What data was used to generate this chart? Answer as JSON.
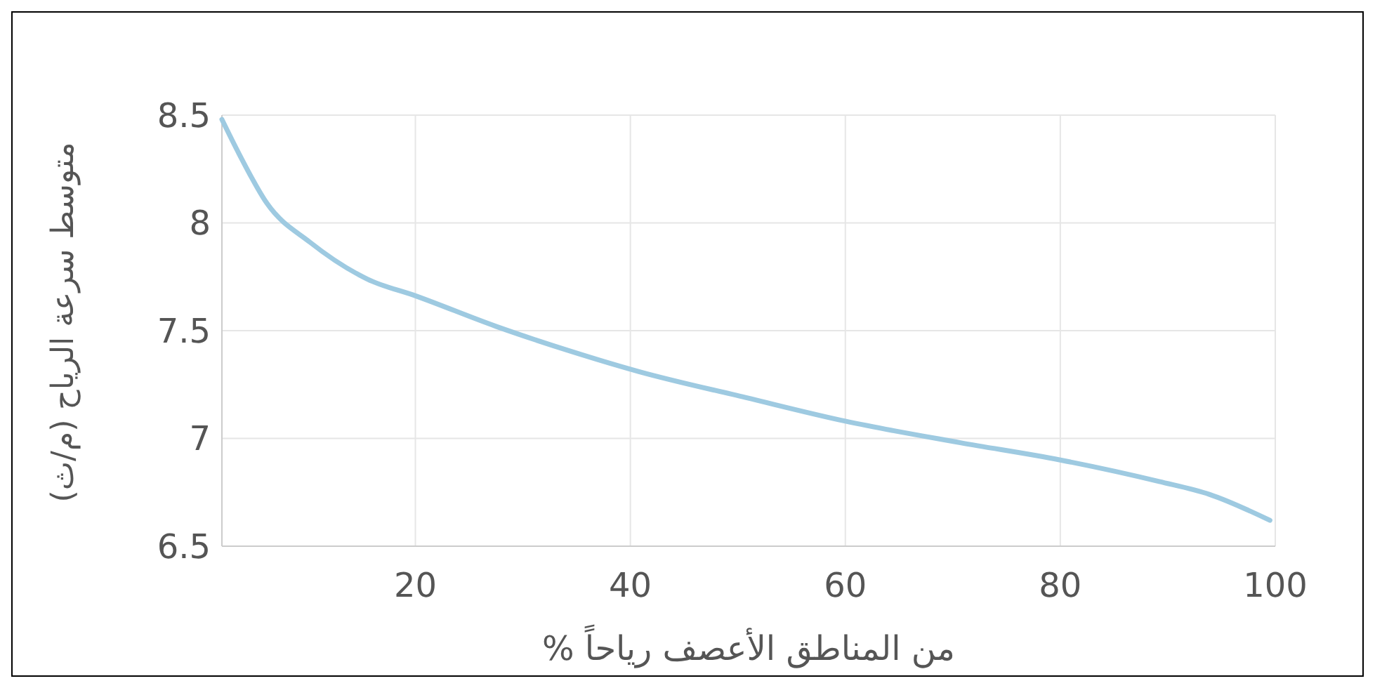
{
  "chart_data": {
    "type": "line",
    "xlabel": "من المناطق الأعصف رياحاً %",
    "ylabel": "متوسط سرعة الرياح (م/ث)",
    "xlim": [
      2,
      100
    ],
    "ylim": [
      6.5,
      8.5
    ],
    "xticks": [
      20,
      40,
      60,
      80,
      100
    ],
    "yticks": [
      6.5,
      {
        "value": 7,
        "label": "7"
      },
      7.5,
      {
        "value": 8,
        "label": "8"
      },
      8.5
    ],
    "grid": true,
    "series": [
      {
        "color": "#9ecae1",
        "x": [
          2,
          3.6,
          6.2,
          10.2,
          15.5,
          20.1,
          27.5,
          34.1,
          40.8,
          50.7,
          60,
          70.7,
          80,
          89.2,
          93.9,
          99.5
        ],
        "values": [
          8.48,
          8.32,
          8.09,
          7.91,
          7.74,
          7.66,
          7.52,
          7.41,
          7.31,
          7.19,
          7.08,
          6.98,
          6.9,
          6.8,
          6.74,
          6.62
        ]
      }
    ]
  }
}
